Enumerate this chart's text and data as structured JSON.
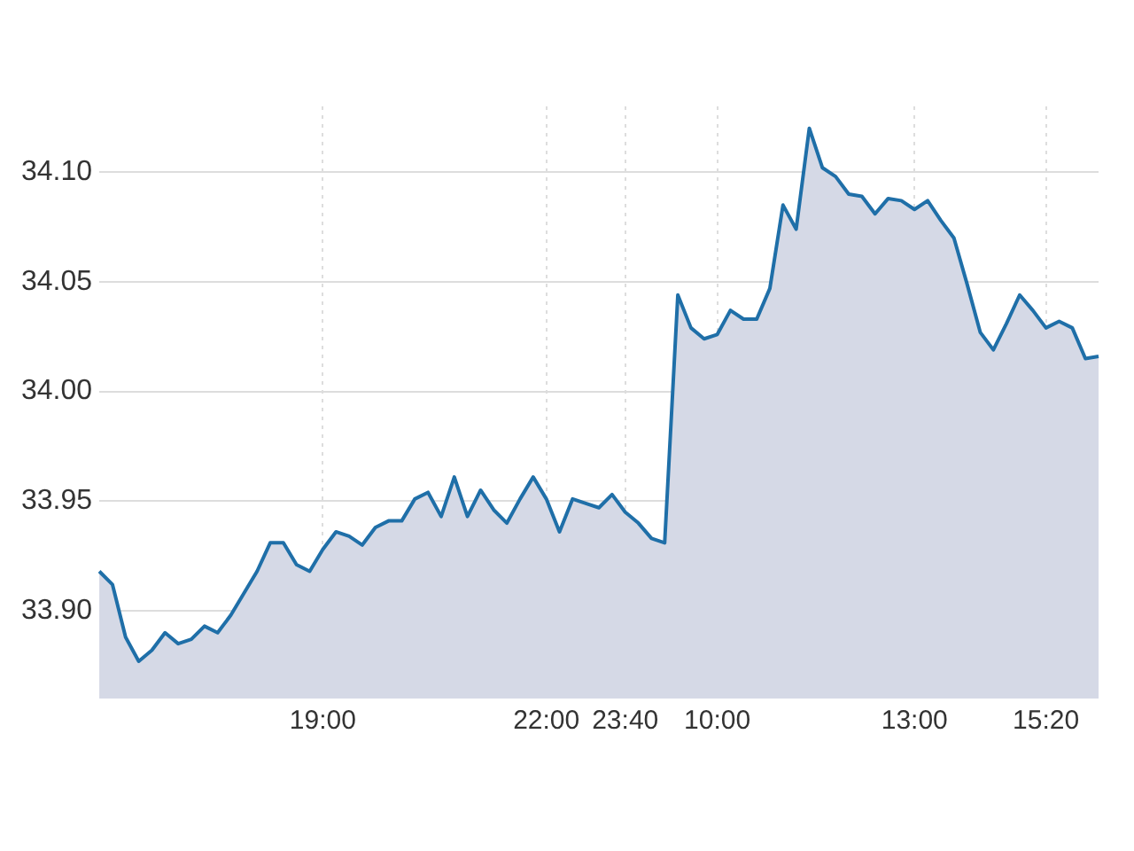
{
  "chart_data": {
    "type": "area",
    "categories": [
      null,
      null,
      null,
      null,
      null,
      null,
      null,
      null,
      null,
      null,
      null,
      null,
      null,
      null,
      null,
      null,
      null,
      "19:00",
      null,
      null,
      null,
      null,
      null,
      null,
      null,
      null,
      null,
      null,
      null,
      null,
      null,
      null,
      null,
      null,
      "22:00",
      null,
      null,
      null,
      null,
      null,
      "23:40",
      null,
      null,
      null,
      null,
      null,
      null,
      "10:00",
      null,
      null,
      null,
      null,
      null,
      null,
      null,
      null,
      null,
      null,
      null,
      null,
      null,
      null,
      "13:00",
      null,
      null,
      null,
      null,
      null,
      null,
      null,
      null,
      null,
      "15:20",
      null,
      null,
      null,
      null
    ],
    "series": [
      {
        "color": "#1f6fa8",
        "values": [
          33.918,
          33.912,
          33.888,
          33.877,
          33.882,
          33.89,
          33.885,
          33.887,
          33.893,
          33.89,
          33.898,
          33.908,
          33.918,
          33.931,
          33.931,
          33.921,
          33.918,
          33.928,
          33.936,
          33.934,
          33.93,
          33.938,
          33.941,
          33.941,
          33.951,
          33.954,
          33.943,
          33.961,
          33.943,
          33.955,
          33.946,
          33.94,
          33.951,
          33.961,
          33.951,
          33.936,
          33.951,
          33.949,
          33.947,
          33.953,
          33.945,
          33.94,
          33.933,
          33.931,
          34.044,
          34.029,
          34.024,
          34.026,
          34.037,
          34.033,
          34.033,
          34.047,
          34.085,
          34.074,
          34.12,
          34.102,
          34.098,
          34.09,
          34.089,
          34.081,
          34.088,
          34.087,
          34.083,
          34.087,
          34.078,
          34.07,
          34.049,
          34.027,
          34.019,
          34.031,
          34.044,
          34.037,
          34.029,
          34.032,
          34.029,
          34.015,
          34.016
        ]
      }
    ],
    "ylim": [
      33.86,
      34.13
    ],
    "yticks": [
      {
        "value": 33.9,
        "label": "33.90"
      },
      {
        "value": 33.95,
        "label": "33.95"
      },
      {
        "value": 34.0,
        "label": "34.00"
      },
      {
        "value": 34.05,
        "label": "34.05"
      },
      {
        "value": 34.1,
        "label": "34.10"
      }
    ],
    "grid": true,
    "legend": false,
    "marker": "none",
    "line_style": "solid"
  }
}
